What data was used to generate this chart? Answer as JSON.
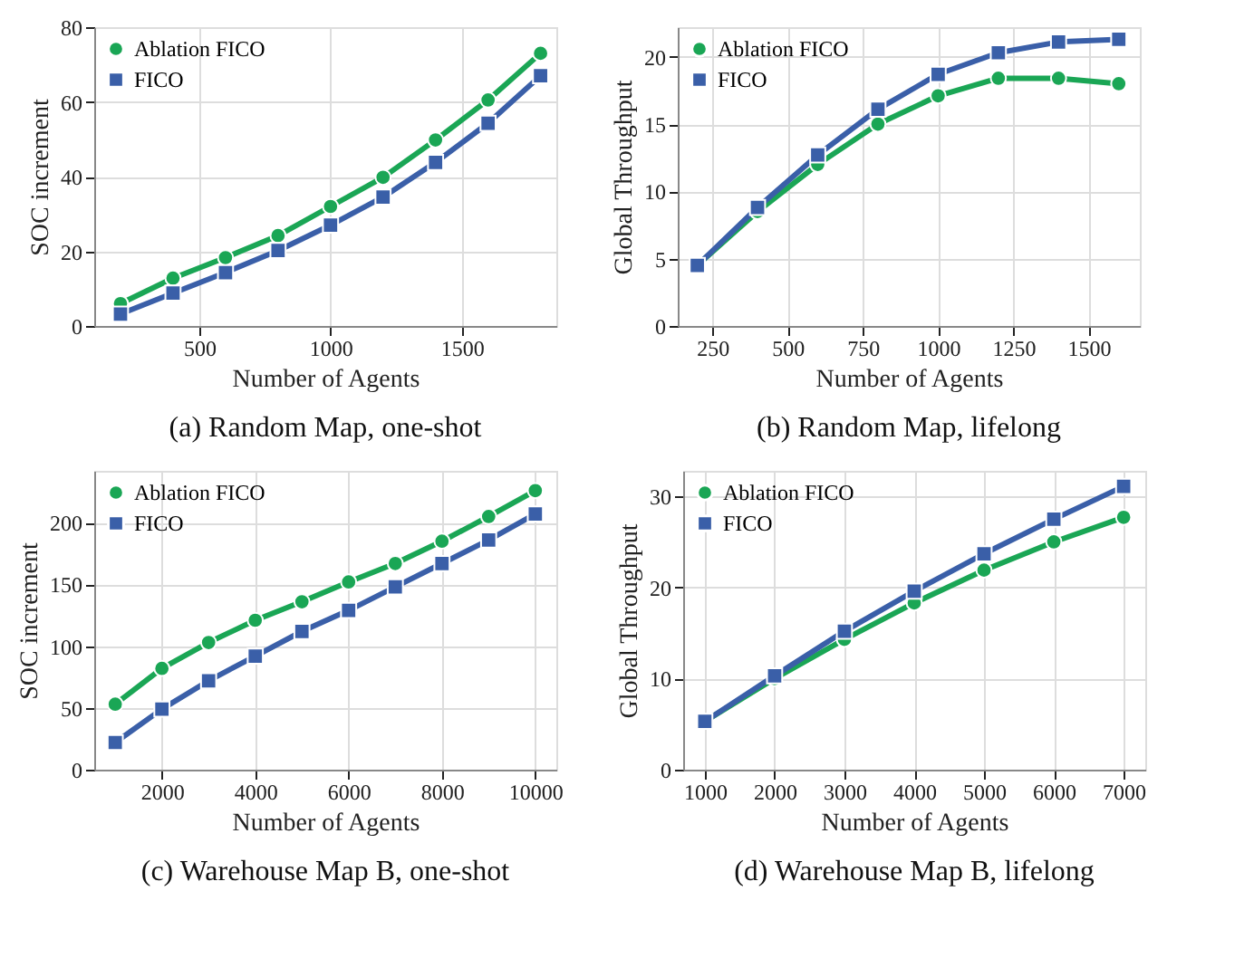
{
  "chart_data": [
    {
      "type": "line",
      "title": "(a) Random Map, one-shot",
      "xlabel": "Number of Agents",
      "ylabel": "SOC increment",
      "x": [
        200,
        400,
        600,
        800,
        1000,
        1200,
        1400,
        1600,
        1800
      ],
      "xlim": [
        100,
        1860
      ],
      "xticks": [
        500,
        1000,
        1500
      ],
      "ylim": [
        0,
        80
      ],
      "yticks": [
        0,
        20,
        40,
        60,
        80
      ],
      "grid": true,
      "legend": "top left",
      "series": [
        {
          "name": "Ablation FICO",
          "color": "#1aa655",
          "marker": "circle",
          "values": [
            6,
            12.8,
            18.3,
            24.2,
            32,
            39.8,
            49.8,
            60.5,
            73
          ]
        },
        {
          "name": "FICO",
          "color": "#3a5fa8",
          "marker": "square",
          "values": [
            3.2,
            8.8,
            14.3,
            20.2,
            27,
            34.5,
            43.8,
            54.3,
            67
          ]
        }
      ]
    },
    {
      "type": "line",
      "title": "(b) Random Map, lifelong",
      "xlabel": "Number of Agents",
      "ylabel": "Global Throughput",
      "x": [
        200,
        400,
        600,
        800,
        1000,
        1200,
        1400,
        1600
      ],
      "xlim": [
        135,
        1670
      ],
      "xticks": [
        250,
        500,
        750,
        1000,
        1250,
        1500
      ],
      "ylim": [
        0,
        22.2
      ],
      "yticks": [
        0,
        5,
        10,
        15,
        20
      ],
      "grid": true,
      "legend": "top left",
      "series": [
        {
          "name": "Ablation FICO",
          "color": "#1aa655",
          "marker": "circle",
          "values": [
            4.5,
            8.5,
            12.0,
            15.0,
            17.1,
            18.4,
            18.4,
            18.0
          ]
        },
        {
          "name": "FICO",
          "color": "#3a5fa8",
          "marker": "square",
          "values": [
            4.5,
            8.8,
            12.7,
            16.1,
            18.7,
            20.3,
            21.1,
            21.3
          ]
        }
      ]
    },
    {
      "type": "line",
      "title": "(c) Warehouse Map B, one-shot",
      "xlabel": "Number of Agents",
      "ylabel": "SOC increment",
      "x": [
        1000,
        2000,
        3000,
        4000,
        5000,
        6000,
        7000,
        8000,
        9000,
        10000
      ],
      "xlim": [
        550,
        10450
      ],
      "xticks": [
        2000,
        4000,
        6000,
        8000,
        10000
      ],
      "ylim": [
        0,
        242
      ],
      "yticks": [
        0,
        50,
        100,
        150,
        200
      ],
      "grid": true,
      "legend": "top left",
      "series": [
        {
          "name": "Ablation FICO",
          "color": "#1aa655",
          "marker": "circle",
          "values": [
            53,
            82,
            103,
            121,
            136,
            152,
            167,
            185,
            205,
            226
          ]
        },
        {
          "name": "FICO",
          "color": "#3a5fa8",
          "marker": "square",
          "values": [
            22,
            49,
            72,
            92,
            112,
            129,
            148,
            167,
            186,
            207
          ]
        }
      ]
    },
    {
      "type": "line",
      "title": "(d) Warehouse Map B, lifelong",
      "xlabel": "Number of Agents",
      "ylabel": "Global Throughput",
      "x": [
        1000,
        2000,
        3000,
        4000,
        5000,
        6000,
        7000
      ],
      "xlim": [
        690,
        7310
      ],
      "xticks": [
        1000,
        2000,
        3000,
        4000,
        5000,
        6000,
        7000
      ],
      "ylim": [
        0,
        32.8
      ],
      "yticks": [
        0,
        10,
        20,
        30
      ],
      "grid": true,
      "legend": "top left",
      "series": [
        {
          "name": "Ablation FICO",
          "color": "#1aa655",
          "marker": "circle",
          "values": [
            5.3,
            10,
            14.3,
            18.3,
            21.9,
            25,
            27.7
          ]
        },
        {
          "name": "FICO",
          "color": "#3a5fa8",
          "marker": "square",
          "values": [
            5.3,
            10.3,
            15.2,
            19.6,
            23.7,
            27.5,
            31.1
          ]
        }
      ]
    }
  ]
}
